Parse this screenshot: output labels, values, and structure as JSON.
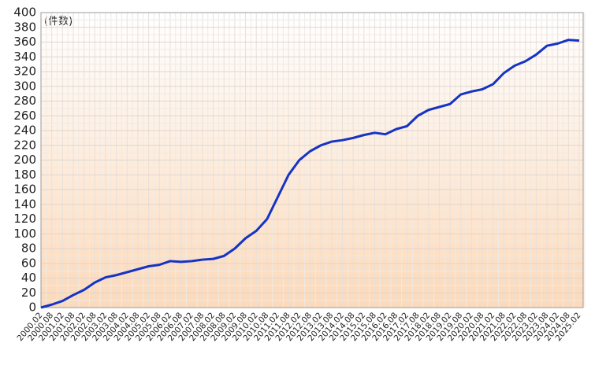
{
  "chart_data": {
    "type": "line",
    "annotation": "(件数)",
    "categories": [
      "2000.02",
      "2000.08",
      "2001.02",
      "2001.08",
      "2002.02",
      "2002.08",
      "2003.02",
      "2003.08",
      "2004.02",
      "2004.08",
      "2005.02",
      "2005.08",
      "2006.02",
      "2006.08",
      "2007.02",
      "2007.08",
      "2008.02",
      "2008.08",
      "2009.02",
      "2009.08",
      "2010.02",
      "2010.08",
      "2011.02",
      "2011.08",
      "2012.02",
      "2012.08",
      "2013.02",
      "2013.08",
      "2014.02",
      "2014.08",
      "2015.02",
      "2015.08",
      "2016.02",
      "2016.08",
      "2017.02",
      "2017.08",
      "2018.02",
      "2018.08",
      "2019.02",
      "2019.08",
      "2020.02",
      "2020.08",
      "2021.02",
      "2021.08",
      "2022.02",
      "2022.08",
      "2023.02",
      "2023.08",
      "2024.02",
      "2024.08",
      "2025.02"
    ],
    "values": [
      0,
      4,
      9,
      17,
      24,
      34,
      41,
      44,
      48,
      52,
      56,
      58,
      63,
      62,
      63,
      65,
      66,
      70,
      80,
      94,
      104,
      120,
      150,
      180,
      200,
      212,
      220,
      225,
      227,
      230,
      234,
      237,
      235,
      242,
      246,
      260,
      268,
      272,
      276,
      289,
      293,
      296,
      303,
      318,
      328,
      334,
      343,
      355,
      358,
      363,
      362
    ],
    "color": "#1633c4",
    "ylim": [
      0,
      400
    ],
    "yticks": [
      0,
      20,
      40,
      60,
      80,
      100,
      120,
      140,
      160,
      180,
      200,
      220,
      240,
      260,
      280,
      300,
      320,
      340,
      360,
      380,
      400
    ],
    "grid": true
  }
}
